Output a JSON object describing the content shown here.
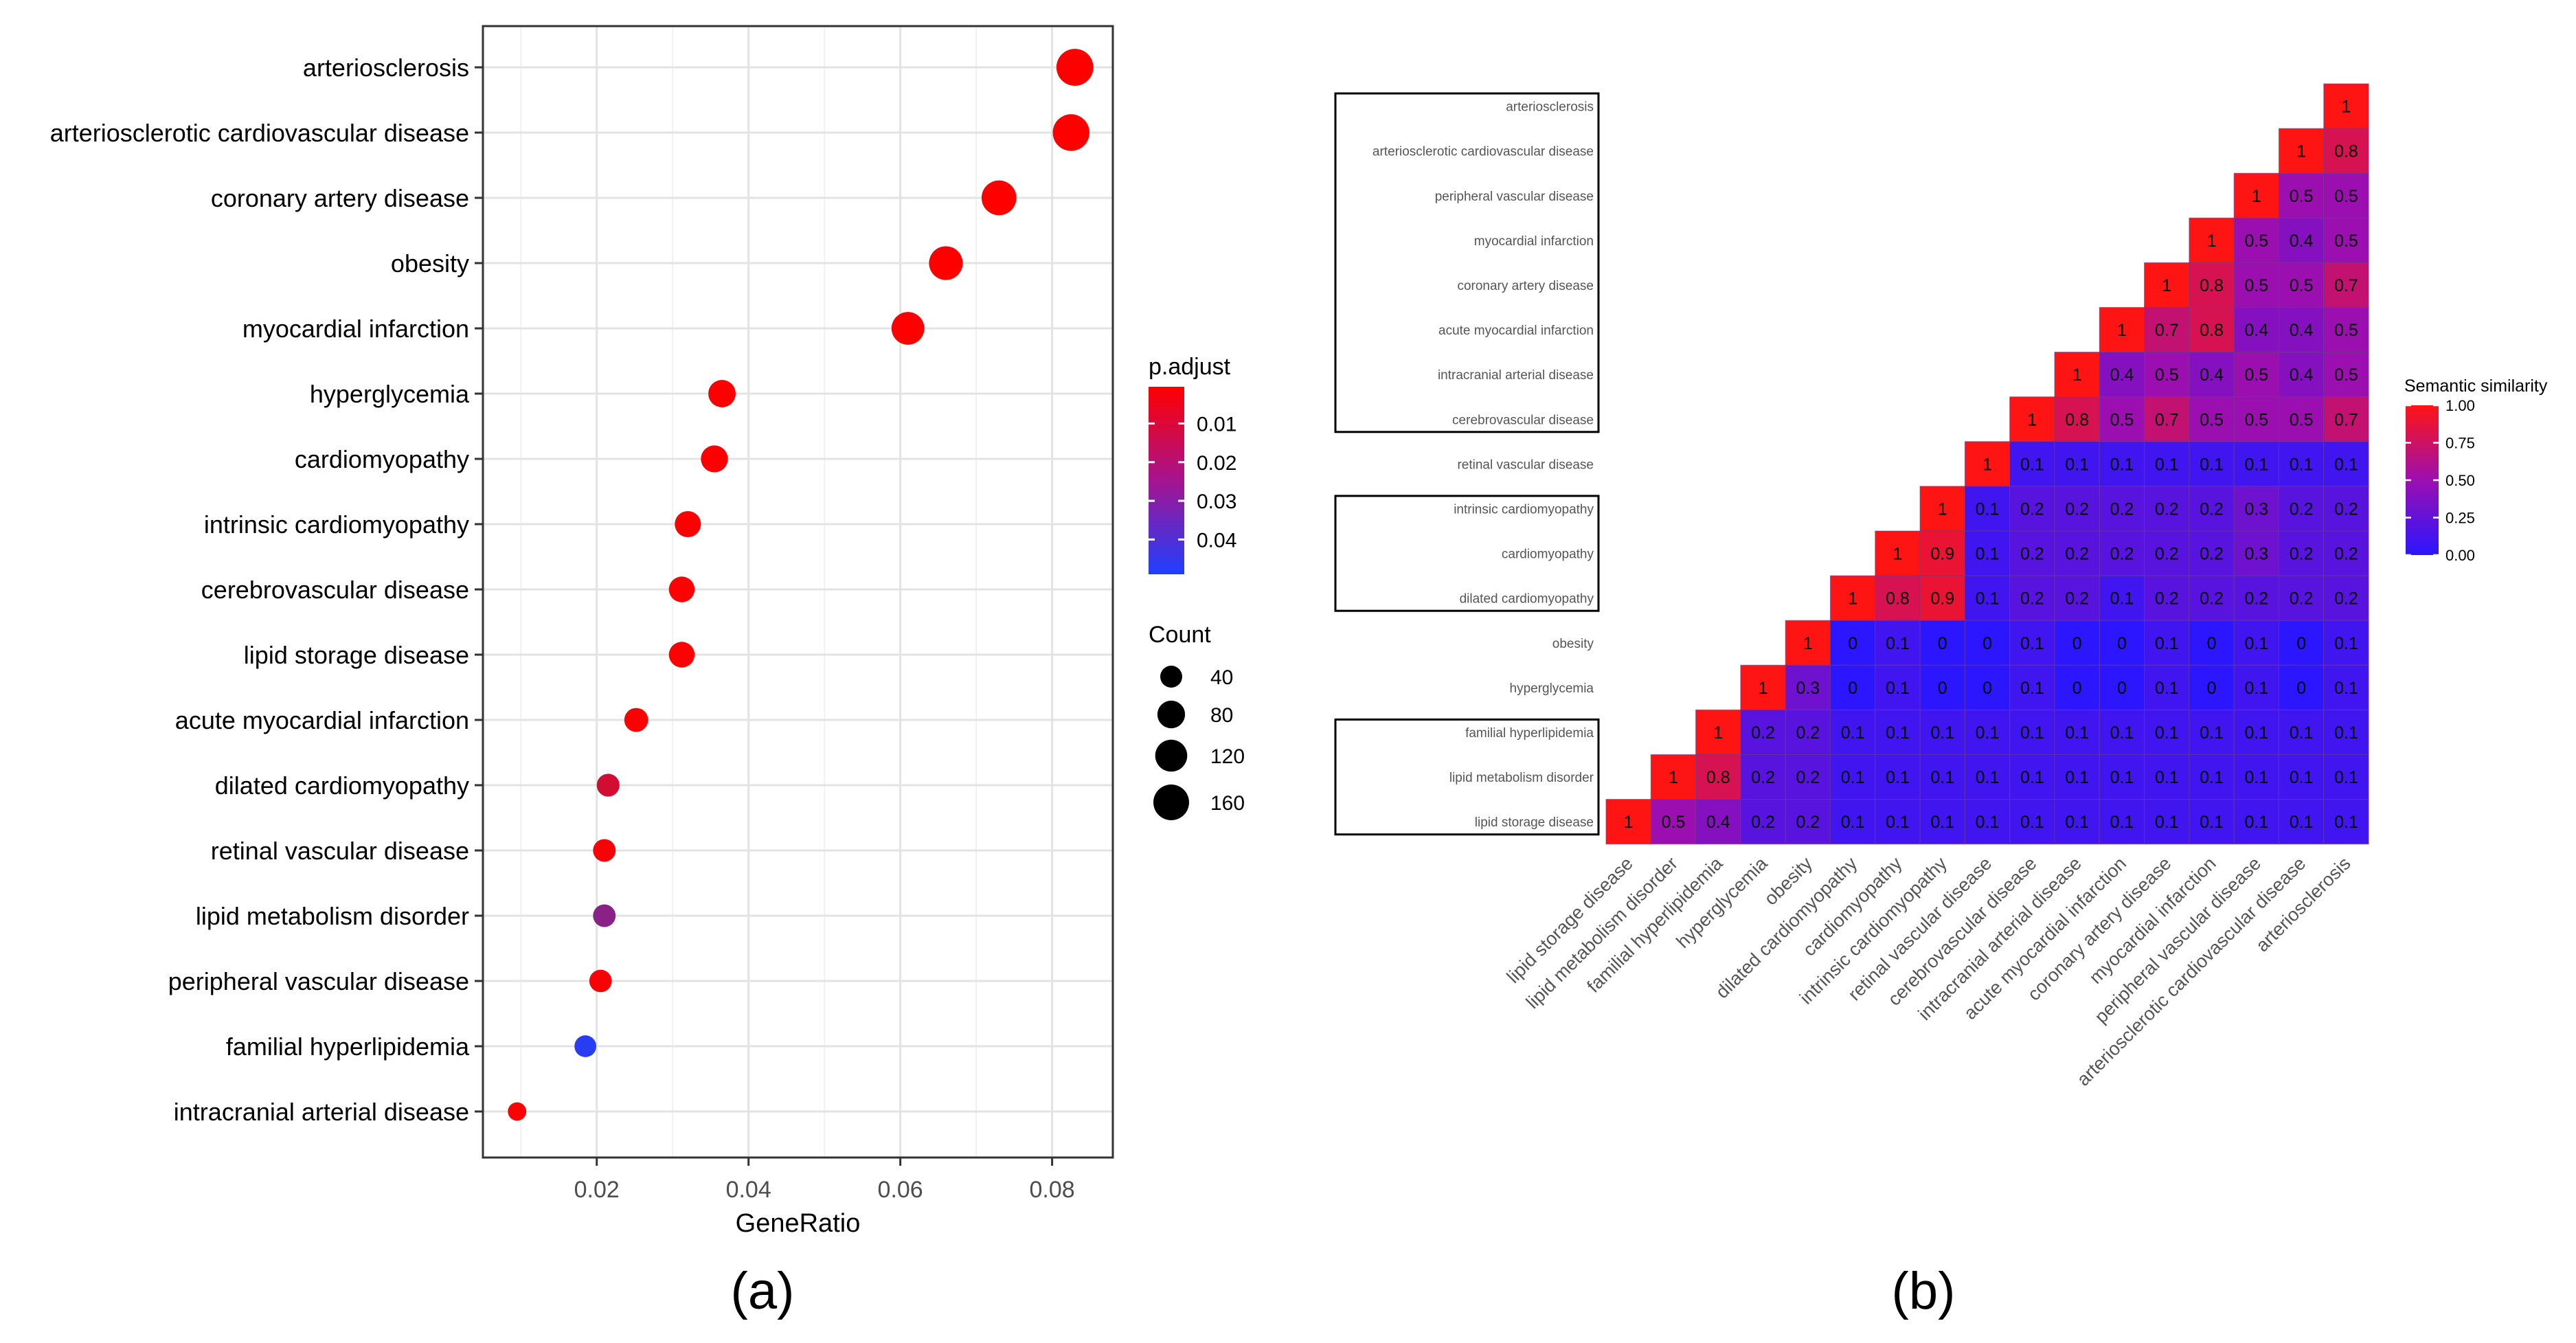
{
  "panels": {
    "a_label": "(a)",
    "b_label": "(b)"
  },
  "chart_data": [
    {
      "type": "scatter",
      "subtype": "dotplot",
      "xlabel": "GeneRatio",
      "xlim": [
        0.005,
        0.088
      ],
      "xticks": [
        0.02,
        0.04,
        0.06,
        0.08
      ],
      "xtick_labels": [
        "0.02",
        "0.04",
        "0.06",
        "0.08"
      ],
      "categories": [
        "arteriosclerosis",
        "arteriosclerotic cardiovascular disease",
        "coronary artery disease",
        "obesity",
        "myocardial infarction",
        "hyperglycemia",
        "cardiomyopathy",
        "intrinsic cardiomyopathy",
        "cerebrovascular disease",
        "lipid storage disease",
        "acute myocardial infarction",
        "dilated cardiomyopathy",
        "retinal vascular disease",
        "lipid metabolism disorder",
        "peripheral vascular disease",
        "familial hyperlipidemia",
        "intracranial arterial disease"
      ],
      "gene_ratio": [
        0.083,
        0.0825,
        0.073,
        0.066,
        0.061,
        0.0365,
        0.0355,
        0.032,
        0.0312,
        0.0312,
        0.0252,
        0.0215,
        0.021,
        0.021,
        0.0205,
        0.0185,
        0.0095
      ],
      "count": [
        175,
        172,
        150,
        138,
        128,
        78,
        75,
        68,
        65,
        65,
        52,
        45,
        44,
        44,
        43,
        39,
        22
      ],
      "p_adjust": [
        0.0005,
        0.0005,
        0.0005,
        0.0005,
        0.0005,
        0.0008,
        0.0008,
        0.0009,
        0.001,
        0.001,
        0.0012,
        0.01,
        0.002,
        0.026,
        0.002,
        0.047,
        0.001
      ],
      "color_legend": {
        "title": "p.adjust",
        "ticks": [
          0.01,
          0.02,
          0.03,
          0.04
        ],
        "tick_labels": [
          "0.01",
          "0.02",
          "0.03",
          "0.04"
        ],
        "range": [
          0.0005,
          0.049
        ],
        "low_color": "#ff0000",
        "high_color": "#1f3fff"
      },
      "size_legend": {
        "title": "Count",
        "values": [
          40,
          80,
          120,
          160
        ],
        "labels": [
          "40",
          "80",
          "120",
          "160"
        ]
      },
      "grid": true,
      "legend_position": "right"
    },
    {
      "type": "heatmap",
      "subtype": "lower-triangle similarity",
      "legend_title": "Semantic similarity",
      "legend_ticks": [
        1.0,
        0.75,
        0.5,
        0.25,
        0.0
      ],
      "legend_tick_labels": [
        "1.00",
        "0.75",
        "0.50",
        "0.25",
        "0.00"
      ],
      "colors": {
        "low": "#2b16ff",
        "mid": "#9b0fb0",
        "high": "#ff1414"
      },
      "rows_top_to_bottom": [
        "arteriosclerosis",
        "arteriosclerotic cardiovascular disease",
        "peripheral vascular disease",
        "myocardial infarction",
        "coronary artery disease",
        "acute myocardial infarction",
        "intracranial arterial disease",
        "cerebrovascular disease",
        "retinal vascular disease",
        "intrinsic cardiomyopathy",
        "cardiomyopathy",
        "dilated cardiomyopathy",
        "obesity",
        "hyperglycemia",
        "familial hyperlipidemia",
        "lipid metabolism disorder",
        "lipid storage disease"
      ],
      "columns_left_to_right": [
        "lipid storage disease",
        "lipid metabolism disorder",
        "familial hyperlipidemia",
        "hyperglycemia",
        "obesity",
        "dilated cardiomyopathy",
        "cardiomyopathy",
        "intrinsic cardiomyopathy",
        "retinal vascular disease",
        "cerebrovascular disease",
        "intracranial arterial disease",
        "acute myocardial infarction",
        "coronary artery disease",
        "myocardial infarction",
        "peripheral vascular disease",
        "arteriosclerotic cardiovascular disease",
        "arteriosclerosis"
      ],
      "cell_labels": [
        [
          "1"
        ],
        [
          "1",
          "0.8"
        ],
        [
          "1",
          "0.5",
          "0.5"
        ],
        [
          "1",
          "0.5",
          "0.4",
          "0.5"
        ],
        [
          "1",
          "0.8",
          "0.5",
          "0.5",
          "0.7"
        ],
        [
          "1",
          "0.7",
          "0.8",
          "0.4",
          "0.4",
          "0.5"
        ],
        [
          "1",
          "0.4",
          "0.5",
          "0.4",
          "0.5",
          "0.4",
          "0.5"
        ],
        [
          "1",
          "0.8",
          "0.5",
          "0.7",
          "0.5",
          "0.5",
          "0.5",
          "0.7"
        ],
        [
          "1",
          "0.1",
          "0.1",
          "0.1",
          "0.1",
          "0.1",
          "0.1",
          "0.1",
          "0.1"
        ],
        [
          "1",
          "0.1",
          "0.2",
          "0.2",
          "0.2",
          "0.2",
          "0.2",
          "0.3",
          "0.2",
          "0.2"
        ],
        [
          "1",
          "0.9",
          "0.1",
          "0.2",
          "0.2",
          "0.2",
          "0.2",
          "0.2",
          "0.3",
          "0.2",
          "0.2"
        ],
        [
          "1",
          "0.8",
          "0.9",
          "0.1",
          "0.2",
          "0.2",
          "0.1",
          "0.2",
          "0.2",
          "0.2",
          "0.2",
          "0.2"
        ],
        [
          "1",
          "0",
          "0.1",
          "0",
          "0",
          "0.1",
          "0",
          "0",
          "0.1",
          "0",
          "0.1",
          "0",
          "0.1"
        ],
        [
          "1",
          "0.3",
          "0",
          "0.1",
          "0",
          "0",
          "0.1",
          "0",
          "0",
          "0.1",
          "0",
          "0.1",
          "0",
          "0.1"
        ],
        [
          "1",
          "0.2",
          "0.2",
          "0.1",
          "0.1",
          "0.1",
          "0.1",
          "0.1",
          "0.1",
          "0.1",
          "0.1",
          "0.1",
          "0.1",
          "0.1",
          "0.1"
        ],
        [
          "1",
          "0.8",
          "0.2",
          "0.2",
          "0.1",
          "0.1",
          "0.1",
          "0.1",
          "0.1",
          "0.1",
          "0.1",
          "0.1",
          "0.1",
          "0.1",
          "0.1",
          "0.1"
        ],
        [
          "1",
          "0.5",
          "0.4",
          "0.2",
          "0.2",
          "0.1",
          "0.1",
          "0.1",
          "0.1",
          "0.1",
          "0.1",
          "0.1",
          "0.1",
          "0.1",
          "0.1",
          "0.1",
          "0.1"
        ]
      ],
      "cell_values": [
        [
          1.0
        ],
        [
          1.0,
          0.8
        ],
        [
          1.0,
          0.5,
          0.5
        ],
        [
          1.0,
          0.5,
          0.4,
          0.5
        ],
        [
          1.0,
          0.8,
          0.5,
          0.5,
          0.7
        ],
        [
          1.0,
          0.7,
          0.8,
          0.4,
          0.4,
          0.5
        ],
        [
          1.0,
          0.4,
          0.5,
          0.4,
          0.5,
          0.4,
          0.5
        ],
        [
          1.0,
          0.8,
          0.5,
          0.7,
          0.5,
          0.5,
          0.5,
          0.7
        ],
        [
          1.0,
          0.1,
          0.1,
          0.1,
          0.1,
          0.1,
          0.1,
          0.1,
          0.1
        ],
        [
          1.0,
          0.1,
          0.2,
          0.2,
          0.2,
          0.2,
          0.2,
          0.3,
          0.2,
          0.2
        ],
        [
          1.0,
          0.9,
          0.1,
          0.2,
          0.2,
          0.2,
          0.2,
          0.2,
          0.3,
          0.2,
          0.2
        ],
        [
          1.0,
          0.8,
          0.9,
          0.1,
          0.2,
          0.2,
          0.1,
          0.2,
          0.2,
          0.2,
          0.2,
          0.2
        ],
        [
          1.0,
          0.0,
          0.1,
          0.0,
          0.0,
          0.1,
          0.0,
          0.0,
          0.1,
          0.0,
          0.1,
          0.0,
          0.1
        ],
        [
          1.0,
          0.3,
          0.0,
          0.1,
          0.0,
          0.0,
          0.1,
          0.0,
          0.0,
          0.1,
          0.0,
          0.1,
          0.0,
          0.1
        ],
        [
          1.0,
          0.2,
          0.2,
          0.1,
          0.1,
          0.1,
          0.1,
          0.1,
          0.1,
          0.1,
          0.1,
          0.1,
          0.1,
          0.1,
          0.1
        ],
        [
          1.0,
          0.8,
          0.2,
          0.2,
          0.1,
          0.1,
          0.1,
          0.1,
          0.1,
          0.1,
          0.1,
          0.1,
          0.1,
          0.1,
          0.1,
          0.1
        ],
        [
          1.0,
          0.5,
          0.4,
          0.2,
          0.2,
          0.1,
          0.1,
          0.1,
          0.1,
          0.1,
          0.1,
          0.1,
          0.1,
          0.1,
          0.1,
          0.1,
          0.1
        ]
      ],
      "row_groups": [
        {
          "first_row": 0,
          "last_row": 7
        },
        {
          "first_row": 9,
          "last_row": 11
        },
        {
          "first_row": 14,
          "last_row": 16
        }
      ]
    }
  ]
}
